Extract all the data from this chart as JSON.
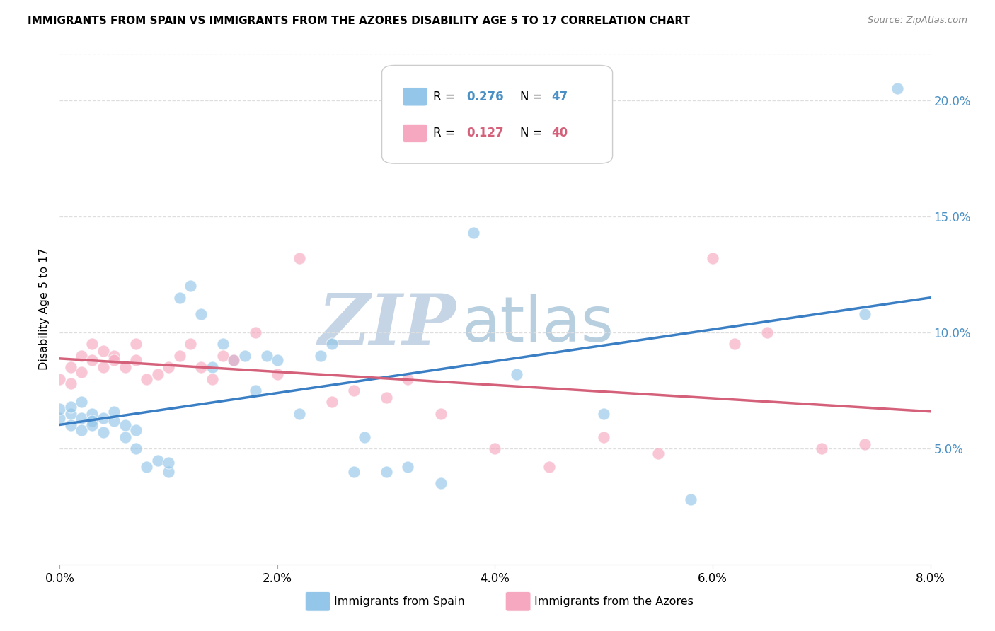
{
  "title": "IMMIGRANTS FROM SPAIN VS IMMIGRANTS FROM THE AZORES DISABILITY AGE 5 TO 17 CORRELATION CHART",
  "source": "Source: ZipAtlas.com",
  "ylabel": "Disability Age 5 to 17",
  "legend_label1": "Immigrants from Spain",
  "legend_label2": "Immigrants from the Azores",
  "R1": 0.276,
  "N1": 47,
  "R2": 0.127,
  "N2": 40,
  "color_blue": "#93c6e8",
  "color_pink": "#f5a8bf",
  "color_blue_text": "#4a90c4",
  "color_pink_text": "#d4607a",
  "color_line_blue": "#3a7ec4",
  "color_line_pink": "#d4607a",
  "xlim": [
    0.0,
    0.08
  ],
  "ylim": [
    0.0,
    0.22
  ],
  "x_ticks": [
    0.0,
    0.02,
    0.04,
    0.06,
    0.08
  ],
  "y_ticks_right": [
    0.05,
    0.1,
    0.15,
    0.2
  ],
  "spain_x": [
    0.0,
    0.0,
    0.001,
    0.001,
    0.001,
    0.002,
    0.002,
    0.002,
    0.003,
    0.003,
    0.003,
    0.004,
    0.004,
    0.005,
    0.005,
    0.006,
    0.006,
    0.007,
    0.007,
    0.008,
    0.009,
    0.01,
    0.01,
    0.011,
    0.012,
    0.013,
    0.014,
    0.015,
    0.016,
    0.017,
    0.018,
    0.019,
    0.02,
    0.022,
    0.024,
    0.025,
    0.027,
    0.028,
    0.03,
    0.032,
    0.035,
    0.038,
    0.042,
    0.05,
    0.058,
    0.074,
    0.077
  ],
  "spain_y": [
    0.063,
    0.067,
    0.065,
    0.068,
    0.06,
    0.063,
    0.07,
    0.058,
    0.065,
    0.062,
    0.06,
    0.063,
    0.057,
    0.062,
    0.066,
    0.06,
    0.055,
    0.058,
    0.05,
    0.042,
    0.045,
    0.04,
    0.044,
    0.115,
    0.12,
    0.108,
    0.085,
    0.095,
    0.088,
    0.09,
    0.075,
    0.09,
    0.088,
    0.065,
    0.09,
    0.095,
    0.04,
    0.055,
    0.04,
    0.042,
    0.035,
    0.143,
    0.082,
    0.065,
    0.028,
    0.108,
    0.205
  ],
  "azores_x": [
    0.0,
    0.001,
    0.001,
    0.002,
    0.002,
    0.003,
    0.003,
    0.004,
    0.004,
    0.005,
    0.005,
    0.006,
    0.007,
    0.007,
    0.008,
    0.009,
    0.01,
    0.011,
    0.012,
    0.013,
    0.014,
    0.015,
    0.016,
    0.018,
    0.02,
    0.022,
    0.025,
    0.027,
    0.03,
    0.032,
    0.035,
    0.04,
    0.045,
    0.05,
    0.055,
    0.06,
    0.062,
    0.065,
    0.07,
    0.074
  ],
  "azores_y": [
    0.08,
    0.085,
    0.078,
    0.09,
    0.083,
    0.088,
    0.095,
    0.085,
    0.092,
    0.09,
    0.088,
    0.085,
    0.095,
    0.088,
    0.08,
    0.082,
    0.085,
    0.09,
    0.095,
    0.085,
    0.08,
    0.09,
    0.088,
    0.1,
    0.082,
    0.132,
    0.07,
    0.075,
    0.072,
    0.08,
    0.065,
    0.05,
    0.042,
    0.055,
    0.048,
    0.132,
    0.095,
    0.1,
    0.05,
    0.052
  ],
  "background_color": "#ffffff",
  "grid_color": "#dedede",
  "watermark_zip_color": "#c5d5e5",
  "watermark_atlas_color": "#b8cfe0"
}
